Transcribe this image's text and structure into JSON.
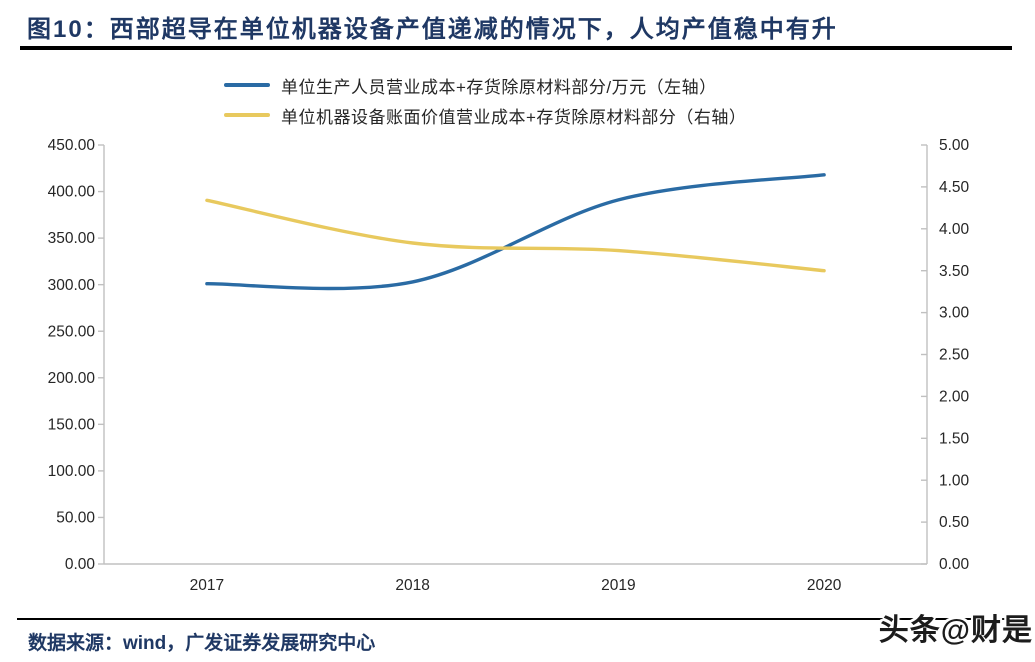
{
  "header": {
    "title": "图10：西部超导在单位机器设备产值递减的情况下，人均产值稳中有升",
    "title_color": "#1F3864"
  },
  "legend": {
    "items": [
      {
        "label": "单位生产人员营业成本+存货除原材料部分/万元（左轴）",
        "color": "#2A6BA4"
      },
      {
        "label": "单位机器设备账面价值营业成本+存货除原材料部分（右轴）",
        "color": "#E8C95E"
      }
    ]
  },
  "chart_data": {
    "type": "line",
    "smooth": true,
    "grid": false,
    "legend_position": "top",
    "categories": [
      "2017",
      "2018",
      "2019",
      "2020"
    ],
    "series": [
      {
        "name": "单位生产人员营业成本+存货除原材料部分/万元（左轴）",
        "axis": "left",
        "color": "#2A6BA4",
        "values": [
          301,
          303,
          391,
          418
        ]
      },
      {
        "name": "单位机器设备账面价值营业成本+存货除原材料部分（右轴）",
        "axis": "right",
        "color": "#E8C95E",
        "values": [
          4.34,
          3.83,
          3.74,
          3.5
        ]
      }
    ],
    "left_axis": {
      "min": 0,
      "max": 450,
      "step": 50,
      "tick_labels": [
        "0.00",
        "50.00",
        "100.00",
        "150.00",
        "200.00",
        "250.00",
        "300.00",
        "350.00",
        "400.00",
        "450.00"
      ]
    },
    "right_axis": {
      "min": 0,
      "max": 5,
      "step": 0.5,
      "tick_labels": [
        "0.00",
        "0.50",
        "1.00",
        "1.50",
        "2.00",
        "2.50",
        "3.00",
        "3.50",
        "4.00",
        "4.50",
        "5.00"
      ]
    },
    "axis_color": "#C0C0C0",
    "label_color": "#262626"
  },
  "footer": {
    "source": "数据来源：wind，广发证券发展研究中心",
    "watermark": "头条@财是"
  }
}
